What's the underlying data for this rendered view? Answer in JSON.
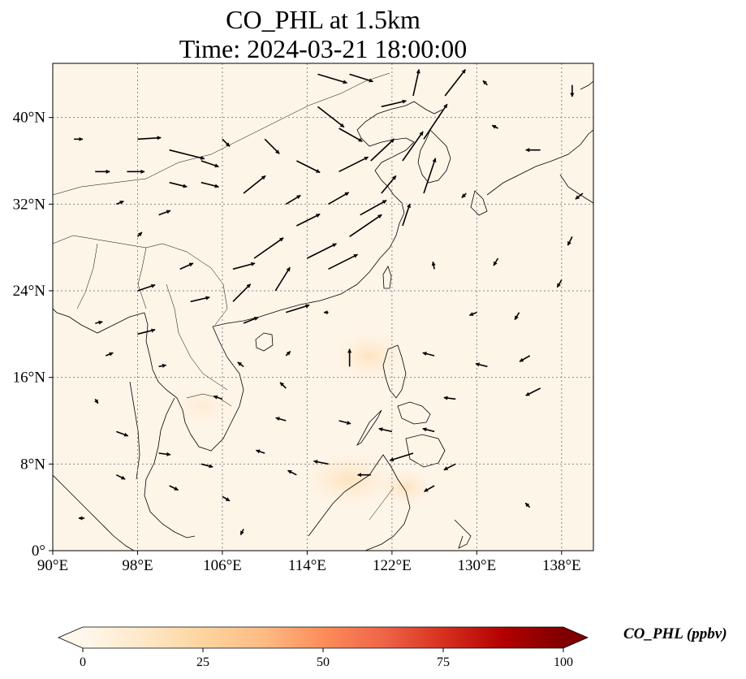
{
  "title": {
    "line1": "CO_PHL at 1.5km",
    "line2": "Time: 2024-03-21 18:00:00"
  },
  "chart_data": {
    "type": "map",
    "variable": "CO_PHL",
    "level": "1.5km",
    "time": "2024-03-21 18:00:00",
    "lon_range": [
      90,
      141
    ],
    "lat_range": [
      0,
      45
    ],
    "x_ticks": [
      "90°E",
      "98°E",
      "106°E",
      "114°E",
      "122°E",
      "130°E",
      "138°E"
    ],
    "x_tick_values": [
      90,
      98,
      106,
      114,
      122,
      130,
      138
    ],
    "y_ticks": [
      "0°",
      "8°N",
      "16°N",
      "24°N",
      "32°N",
      "40°N"
    ],
    "y_tick_values": [
      0,
      8,
      16,
      24,
      32,
      40
    ],
    "grid": "dotted",
    "field_colormap": "OrRd",
    "colorbar": {
      "label": "CO_PHL (ppbv)",
      "min": 0,
      "max": 100,
      "ticks": [
        "0",
        "25",
        "50",
        "75",
        "100"
      ],
      "tick_values": [
        0,
        25,
        50,
        75,
        100
      ],
      "extend": "both",
      "colors": [
        "#fff7ec",
        "#fee8c8",
        "#fdd49e",
        "#fdbb84",
        "#fc8d59",
        "#ef6548",
        "#d7301f",
        "#b30000",
        "#7f0000"
      ]
    },
    "wind_vectors": [
      {
        "lon": 92,
        "lat": 38,
        "u": 0.6,
        "v": 0.0
      },
      {
        "lon": 94,
        "lat": 35,
        "u": 1.0,
        "v": 0.0
      },
      {
        "lon": 98,
        "lat": 38,
        "u": 1.6,
        "v": 0.1
      },
      {
        "lon": 101,
        "lat": 37,
        "u": 2.4,
        "v": -0.6
      },
      {
        "lon": 104,
        "lat": 36,
        "u": 1.2,
        "v": -0.4
      },
      {
        "lon": 97,
        "lat": 35,
        "u": 1.2,
        "v": 0.0
      },
      {
        "lon": 101,
        "lat": 34,
        "u": 1.2,
        "v": -0.3
      },
      {
        "lon": 104,
        "lat": 34,
        "u": 1.2,
        "v": -0.3
      },
      {
        "lon": 100,
        "lat": 31,
        "u": 0.8,
        "v": 0.3
      },
      {
        "lon": 98,
        "lat": 29,
        "u": 0.3,
        "v": 0.3
      },
      {
        "lon": 102,
        "lat": 26,
        "u": 0.9,
        "v": 0.4
      },
      {
        "lon": 107,
        "lat": 26,
        "u": 1.5,
        "v": 0.4
      },
      {
        "lon": 98,
        "lat": 24,
        "u": 1.2,
        "v": 0.4
      },
      {
        "lon": 103,
        "lat": 23,
        "u": 1.3,
        "v": 0.3
      },
      {
        "lon": 98,
        "lat": 20,
        "u": 1.2,
        "v": 0.3
      },
      {
        "lon": 94,
        "lat": 21,
        "u": 0.5,
        "v": 0.1
      },
      {
        "lon": 95,
        "lat": 18,
        "u": 0.5,
        "v": 0.2
      },
      {
        "lon": 100,
        "lat": 17,
        "u": 0.5,
        "v": 0.1
      },
      {
        "lon": 94,
        "lat": 14,
        "u": 0.2,
        "v": -0.3
      },
      {
        "lon": 96,
        "lat": 11,
        "u": 0.8,
        "v": -0.3
      },
      {
        "lon": 100,
        "lat": 9,
        "u": 0.8,
        "v": -0.1
      },
      {
        "lon": 104,
        "lat": 8,
        "u": 0.8,
        "v": -0.2
      },
      {
        "lon": 96,
        "lat": 7,
        "u": 0.6,
        "v": -0.3
      },
      {
        "lon": 101,
        "lat": 6,
        "u": 0.6,
        "v": -0.3
      },
      {
        "lon": 106,
        "lat": 5,
        "u": 0.5,
        "v": -0.3
      },
      {
        "lon": 110,
        "lat": 9,
        "u": -0.6,
        "v": 0.2
      },
      {
        "lon": 112,
        "lat": 12,
        "u": -0.7,
        "v": 0.2
      },
      {
        "lon": 106,
        "lat": 14,
        "u": -0.6,
        "v": 0.2
      },
      {
        "lon": 108,
        "lat": 17,
        "u": -0.4,
        "v": 0.3
      },
      {
        "lon": 112,
        "lat": 18,
        "u": 0.3,
        "v": 0.3
      },
      {
        "lon": 108,
        "lat": 21,
        "u": 1.0,
        "v": 0.4
      },
      {
        "lon": 112,
        "lat": 22,
        "u": 1.6,
        "v": 0.5
      },
      {
        "lon": 107,
        "lat": 23,
        "u": 1.2,
        "v": 1.2
      },
      {
        "lon": 111,
        "lat": 24,
        "u": 1.0,
        "v": 1.6
      },
      {
        "lon": 109,
        "lat": 27,
        "u": 2.0,
        "v": 1.4
      },
      {
        "lon": 114,
        "lat": 27,
        "u": 2.0,
        "v": 1.0
      },
      {
        "lon": 116,
        "lat": 26,
        "u": 2.0,
        "v": 1.0
      },
      {
        "lon": 113,
        "lat": 30,
        "u": 1.6,
        "v": 0.8
      },
      {
        "lon": 118,
        "lat": 29,
        "u": 2.2,
        "v": 1.5
      },
      {
        "lon": 108,
        "lat": 33,
        "u": 1.5,
        "v": 1.2
      },
      {
        "lon": 112,
        "lat": 32,
        "u": 1.0,
        "v": 0.6
      },
      {
        "lon": 116,
        "lat": 32,
        "u": 1.4,
        "v": 0.8
      },
      {
        "lon": 119,
        "lat": 31,
        "u": 1.8,
        "v": 1.0
      },
      {
        "lon": 121,
        "lat": 33,
        "u": 1.0,
        "v": 1.2
      },
      {
        "lon": 117,
        "lat": 35,
        "u": 2.0,
        "v": 1.0
      },
      {
        "lon": 120,
        "lat": 36,
        "u": 1.6,
        "v": 1.5
      },
      {
        "lon": 123,
        "lat": 36,
        "u": 1.4,
        "v": 2.0
      },
      {
        "lon": 125,
        "lat": 33,
        "u": 0.8,
        "v": 2.4
      },
      {
        "lon": 123,
        "lat": 30,
        "u": 0.5,
        "v": 1.5
      },
      {
        "lon": 125,
        "lat": 38,
        "u": 1.6,
        "v": 2.4
      },
      {
        "lon": 127,
        "lat": 42,
        "u": 1.4,
        "v": 1.8
      },
      {
        "lon": 124,
        "lat": 42,
        "u": 0.4,
        "v": 1.8
      },
      {
        "lon": 121,
        "lat": 41,
        "u": 1.7,
        "v": 0.4
      },
      {
        "lon": 115,
        "lat": 41,
        "u": 1.8,
        "v": -1.4
      },
      {
        "lon": 110,
        "lat": 38,
        "u": 1.0,
        "v": -1.0
      },
      {
        "lon": 113,
        "lat": 36,
        "u": 1.6,
        "v": -0.8
      },
      {
        "lon": 117,
        "lat": 39,
        "u": 1.6,
        "v": -0.9
      },
      {
        "lon": 115,
        "lat": 44,
        "u": 2.0,
        "v": -0.6
      },
      {
        "lon": 118,
        "lat": 44,
        "u": 1.6,
        "v": -0.5
      },
      {
        "lon": 106,
        "lat": 38,
        "u": 0.5,
        "v": -0.5
      },
      {
        "lon": 96,
        "lat": 32,
        "u": 0.5,
        "v": 0.2
      },
      {
        "lon": 112,
        "lat": 15,
        "u": -0.4,
        "v": 0.4
      },
      {
        "lon": 118,
        "lat": 17,
        "u": 0.0,
        "v": 1.2
      },
      {
        "lon": 117,
        "lat": 12,
        "u": 0.8,
        "v": -0.2
      },
      {
        "lon": 122,
        "lat": 11,
        "u": -0.9,
        "v": 0.2
      },
      {
        "lon": 124,
        "lat": 9,
        "u": -1.6,
        "v": -0.5
      },
      {
        "lon": 128,
        "lat": 8,
        "u": -0.8,
        "v": -0.4
      },
      {
        "lon": 126,
        "lat": 11,
        "u": -0.8,
        "v": 0.2
      },
      {
        "lon": 128,
        "lat": 14,
        "u": -0.8,
        "v": 0.1
      },
      {
        "lon": 126,
        "lat": 18,
        "u": -0.8,
        "v": 0.2
      },
      {
        "lon": 131,
        "lat": 17,
        "u": -0.8,
        "v": 0.2
      },
      {
        "lon": 136,
        "lat": 15,
        "u": -1.0,
        "v": -0.5
      },
      {
        "lon": 135,
        "lat": 18,
        "u": -0.7,
        "v": -0.4
      },
      {
        "lon": 120,
        "lat": 7,
        "u": -0.9,
        "v": 0.0
      },
      {
        "lon": 116,
        "lat": 8,
        "u": -1.0,
        "v": 0.2
      },
      {
        "lon": 113,
        "lat": 7,
        "u": -0.6,
        "v": 0.3
      },
      {
        "lon": 126,
        "lat": 6,
        "u": -0.7,
        "v": -0.4
      },
      {
        "lon": 130,
        "lat": 22,
        "u": -0.5,
        "v": -0.2
      },
      {
        "lon": 134,
        "lat": 22,
        "u": -0.3,
        "v": -0.5
      },
      {
        "lon": 138,
        "lat": 25,
        "u": -0.3,
        "v": -0.5
      },
      {
        "lon": 139,
        "lat": 29,
        "u": -0.3,
        "v": -0.6
      },
      {
        "lon": 140,
        "lat": 33,
        "u": -0.5,
        "v": -0.4
      },
      {
        "lon": 136,
        "lat": 37,
        "u": -1.0,
        "v": 0.0
      },
      {
        "lon": 132,
        "lat": 39,
        "u": -0.4,
        "v": 0.2
      },
      {
        "lon": 139,
        "lat": 43,
        "u": 0.0,
        "v": -0.8
      },
      {
        "lon": 131,
        "lat": 43,
        "u": -0.3,
        "v": 0.3
      },
      {
        "lon": 132,
        "lat": 27,
        "u": -0.3,
        "v": -0.5
      },
      {
        "lon": 129,
        "lat": 33,
        "u": -0.3,
        "v": -0.3
      },
      {
        "lon": 116,
        "lat": 22,
        "u": -0.3,
        "v": 0.0
      },
      {
        "lon": 126,
        "lat": 26,
        "u": -0.1,
        "v": 0.5
      },
      {
        "lon": 93,
        "lat": 3,
        "u": -0.4,
        "v": 0.0
      },
      {
        "lon": 108,
        "lat": 2,
        "u": -0.2,
        "v": -0.4
      },
      {
        "lon": 135,
        "lat": 4,
        "u": -0.3,
        "v": 0.3
      }
    ]
  }
}
